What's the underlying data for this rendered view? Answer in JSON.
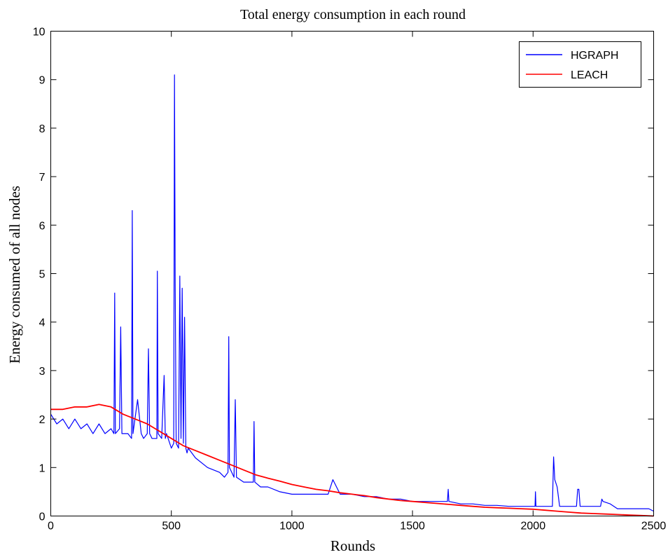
{
  "chart_data": {
    "type": "line",
    "title": "Total energy consumption in each round",
    "xlabel": "Rounds",
    "ylabel": "Energy consumed of all nodes",
    "xlim": [
      0,
      2500
    ],
    "ylim": [
      0,
      10
    ],
    "xticks": [
      0,
      500,
      1000,
      1500,
      2000,
      2500
    ],
    "yticks": [
      0,
      1,
      2,
      3,
      4,
      5,
      6,
      7,
      8,
      9,
      10
    ],
    "grid": false,
    "legend_position": "top-right",
    "series": [
      {
        "name": "HGRAPH",
        "color": "#0000ff",
        "x": [
          0,
          25,
          50,
          75,
          100,
          125,
          150,
          175,
          200,
          225,
          250,
          262,
          265,
          268,
          285,
          290,
          295,
          320,
          335,
          338,
          341,
          360,
          375,
          385,
          400,
          405,
          410,
          420,
          440,
          442,
          445,
          460,
          470,
          475,
          480,
          500,
          510,
          513,
          516,
          520,
          530,
          535,
          540,
          545,
          550,
          555,
          560,
          565,
          570,
          600,
          650,
          700,
          720,
          735,
          738,
          741,
          760,
          765,
          770,
          800,
          830,
          840,
          843,
          846,
          870,
          900,
          950,
          1000,
          1050,
          1100,
          1150,
          1170,
          1200,
          1250,
          1300,
          1350,
          1400,
          1450,
          1500,
          1550,
          1600,
          1645,
          1648,
          1651,
          1700,
          1750,
          1800,
          1850,
          1900,
          1950,
          2000,
          2008,
          2010,
          2012,
          2050,
          2080,
          2085,
          2090,
          2100,
          2110,
          2130,
          2180,
          2185,
          2190,
          2195,
          2200,
          2250,
          2280,
          2285,
          2290,
          2320,
          2350,
          2400,
          2450,
          2480,
          2500
        ],
        "y": [
          2.1,
          1.9,
          2.0,
          1.8,
          2.0,
          1.8,
          1.9,
          1.7,
          1.9,
          1.7,
          1.8,
          1.7,
          4.6,
          1.7,
          1.8,
          3.9,
          1.7,
          1.7,
          1.6,
          6.3,
          1.7,
          2.4,
          1.7,
          1.6,
          1.7,
          3.45,
          1.7,
          1.6,
          1.6,
          5.05,
          1.7,
          1.6,
          2.9,
          1.6,
          1.7,
          1.4,
          1.5,
          9.1,
          4.8,
          1.5,
          1.4,
          4.95,
          1.6,
          4.7,
          1.5,
          4.1,
          1.4,
          1.3,
          1.4,
          1.2,
          1.0,
          0.9,
          0.8,
          0.9,
          3.7,
          1.0,
          0.8,
          2.4,
          0.8,
          0.7,
          0.7,
          0.7,
          1.95,
          0.7,
          0.6,
          0.6,
          0.5,
          0.45,
          0.45,
          0.45,
          0.45,
          0.75,
          0.45,
          0.45,
          0.4,
          0.4,
          0.35,
          0.35,
          0.3,
          0.3,
          0.3,
          0.3,
          0.55,
          0.3,
          0.25,
          0.25,
          0.22,
          0.22,
          0.2,
          0.2,
          0.2,
          0.2,
          0.5,
          0.2,
          0.2,
          0.2,
          1.22,
          0.75,
          0.6,
          0.2,
          0.2,
          0.2,
          0.55,
          0.55,
          0.2,
          0.2,
          0.2,
          0.2,
          0.35,
          0.3,
          0.25,
          0.15,
          0.15,
          0.15,
          0.15,
          0.1
        ]
      },
      {
        "name": "LEACH",
        "color": "#ff0000",
        "x": [
          0,
          50,
          100,
          150,
          200,
          250,
          300,
          350,
          400,
          450,
          500,
          550,
          600,
          650,
          700,
          750,
          800,
          850,
          900,
          950,
          1000,
          1050,
          1100,
          1150,
          1200,
          1250,
          1300,
          1350,
          1400,
          1450,
          1500,
          1550,
          1600,
          1650,
          1700,
          1750,
          1800,
          1850,
          1900,
          1950,
          2000,
          2050,
          2100,
          2150,
          2200,
          2250,
          2300,
          2350,
          2400,
          2450,
          2500
        ],
        "y": [
          2.2,
          2.2,
          2.25,
          2.25,
          2.3,
          2.25,
          2.1,
          2.0,
          1.9,
          1.75,
          1.6,
          1.45,
          1.35,
          1.25,
          1.15,
          1.05,
          0.95,
          0.85,
          0.78,
          0.72,
          0.65,
          0.6,
          0.55,
          0.52,
          0.48,
          0.45,
          0.42,
          0.38,
          0.35,
          0.32,
          0.3,
          0.28,
          0.26,
          0.24,
          0.22,
          0.2,
          0.18,
          0.17,
          0.16,
          0.15,
          0.14,
          0.12,
          0.1,
          0.08,
          0.06,
          0.05,
          0.04,
          0.03,
          0.02,
          0.01,
          0.0
        ]
      }
    ]
  }
}
